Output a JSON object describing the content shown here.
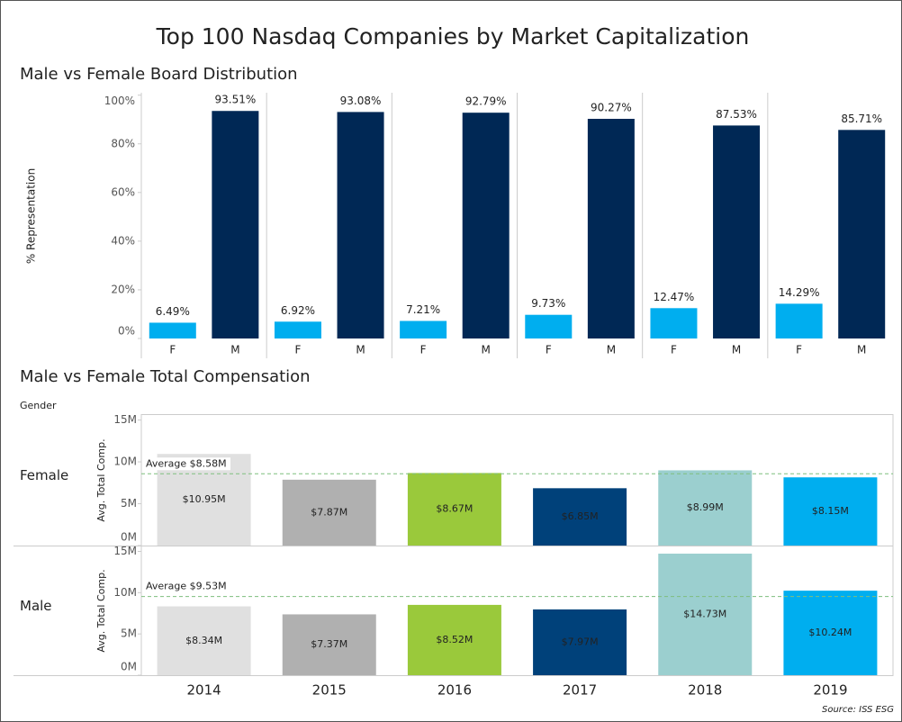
{
  "title": "Top 100 Nasdaq Companies by Market Capitalization",
  "source": "Source: ISS ESG",
  "chart_data": [
    {
      "type": "bar",
      "title": "Male vs Female Board Distribution",
      "y_label": "% Representation",
      "categories": [
        "F",
        "M"
      ],
      "colors": [
        "#00aeef",
        "#002855"
      ],
      "panels": [
        {
          "values": [
            6.49,
            93.51
          ],
          "value_labels": [
            "6.49%",
            "93.51%"
          ]
        },
        {
          "values": [
            6.92,
            93.08
          ],
          "value_labels": [
            "6.92%",
            "93.08%"
          ]
        },
        {
          "values": [
            7.21,
            92.79
          ],
          "value_labels": [
            "7.21%",
            "92.79%"
          ]
        },
        {
          "values": [
            9.73,
            90.27
          ],
          "value_labels": [
            "9.73%",
            "90.27%"
          ]
        },
        {
          "values": [
            12.47,
            87.53
          ],
          "value_labels": [
            "12.47%",
            "87.53%"
          ]
        },
        {
          "values": [
            14.29,
            85.71
          ],
          "value_labels": [
            "14.29%",
            "85.71%"
          ]
        }
      ],
      "ylim": [
        0,
        101
      ],
      "yticks": [
        {
          "value": 0,
          "label": "0%"
        },
        {
          "value": 20,
          "label": "20%"
        },
        {
          "value": 40,
          "label": "40%"
        },
        {
          "value": 60,
          "label": "60%"
        },
        {
          "value": 80,
          "label": "80%"
        },
        {
          "value": 100,
          "label": "100%"
        }
      ]
    },
    {
      "type": "bar",
      "title": "Male vs Female Total Compensation",
      "facet_label": "Gender",
      "y_label": "Avg. Total Comp.",
      "categories": [
        "2014",
        "2015",
        "2016",
        "2017",
        "2018",
        "2019"
      ],
      "colors": [
        "#e0e0e0",
        "#b0b0b0",
        "#9ac93b",
        "#00417a",
        "#9bcfcf",
        "#00aeef"
      ],
      "series": [
        {
          "name": "Female",
          "values": [
            10950000,
            7870000,
            8670000,
            6850000,
            8990000,
            8150000
          ],
          "value_labels": [
            "$10.95M",
            "$7.87M",
            "$8.67M",
            "$6.85M",
            "$8.99M",
            "$8.15M"
          ],
          "average": 8580000,
          "average_label": "Average $8.58M"
        },
        {
          "name": "Male",
          "values": [
            8340000,
            7370000,
            8520000,
            7970000,
            14730000,
            10240000
          ],
          "value_labels": [
            "$8.34M",
            "$7.37M",
            "$8.52M",
            "$7.97M",
            "$14.73M",
            "$10.24M"
          ],
          "average": 9530000,
          "average_label": "Average $9.53M"
        }
      ],
      "ylim": [
        0,
        15600000
      ],
      "yticks": [
        {
          "value": 0,
          "label": "0M"
        },
        {
          "value": 5000000,
          "label": "5M"
        },
        {
          "value": 10000000,
          "label": "10M"
        },
        {
          "value": 15000000,
          "label": "15M"
        }
      ]
    }
  ]
}
